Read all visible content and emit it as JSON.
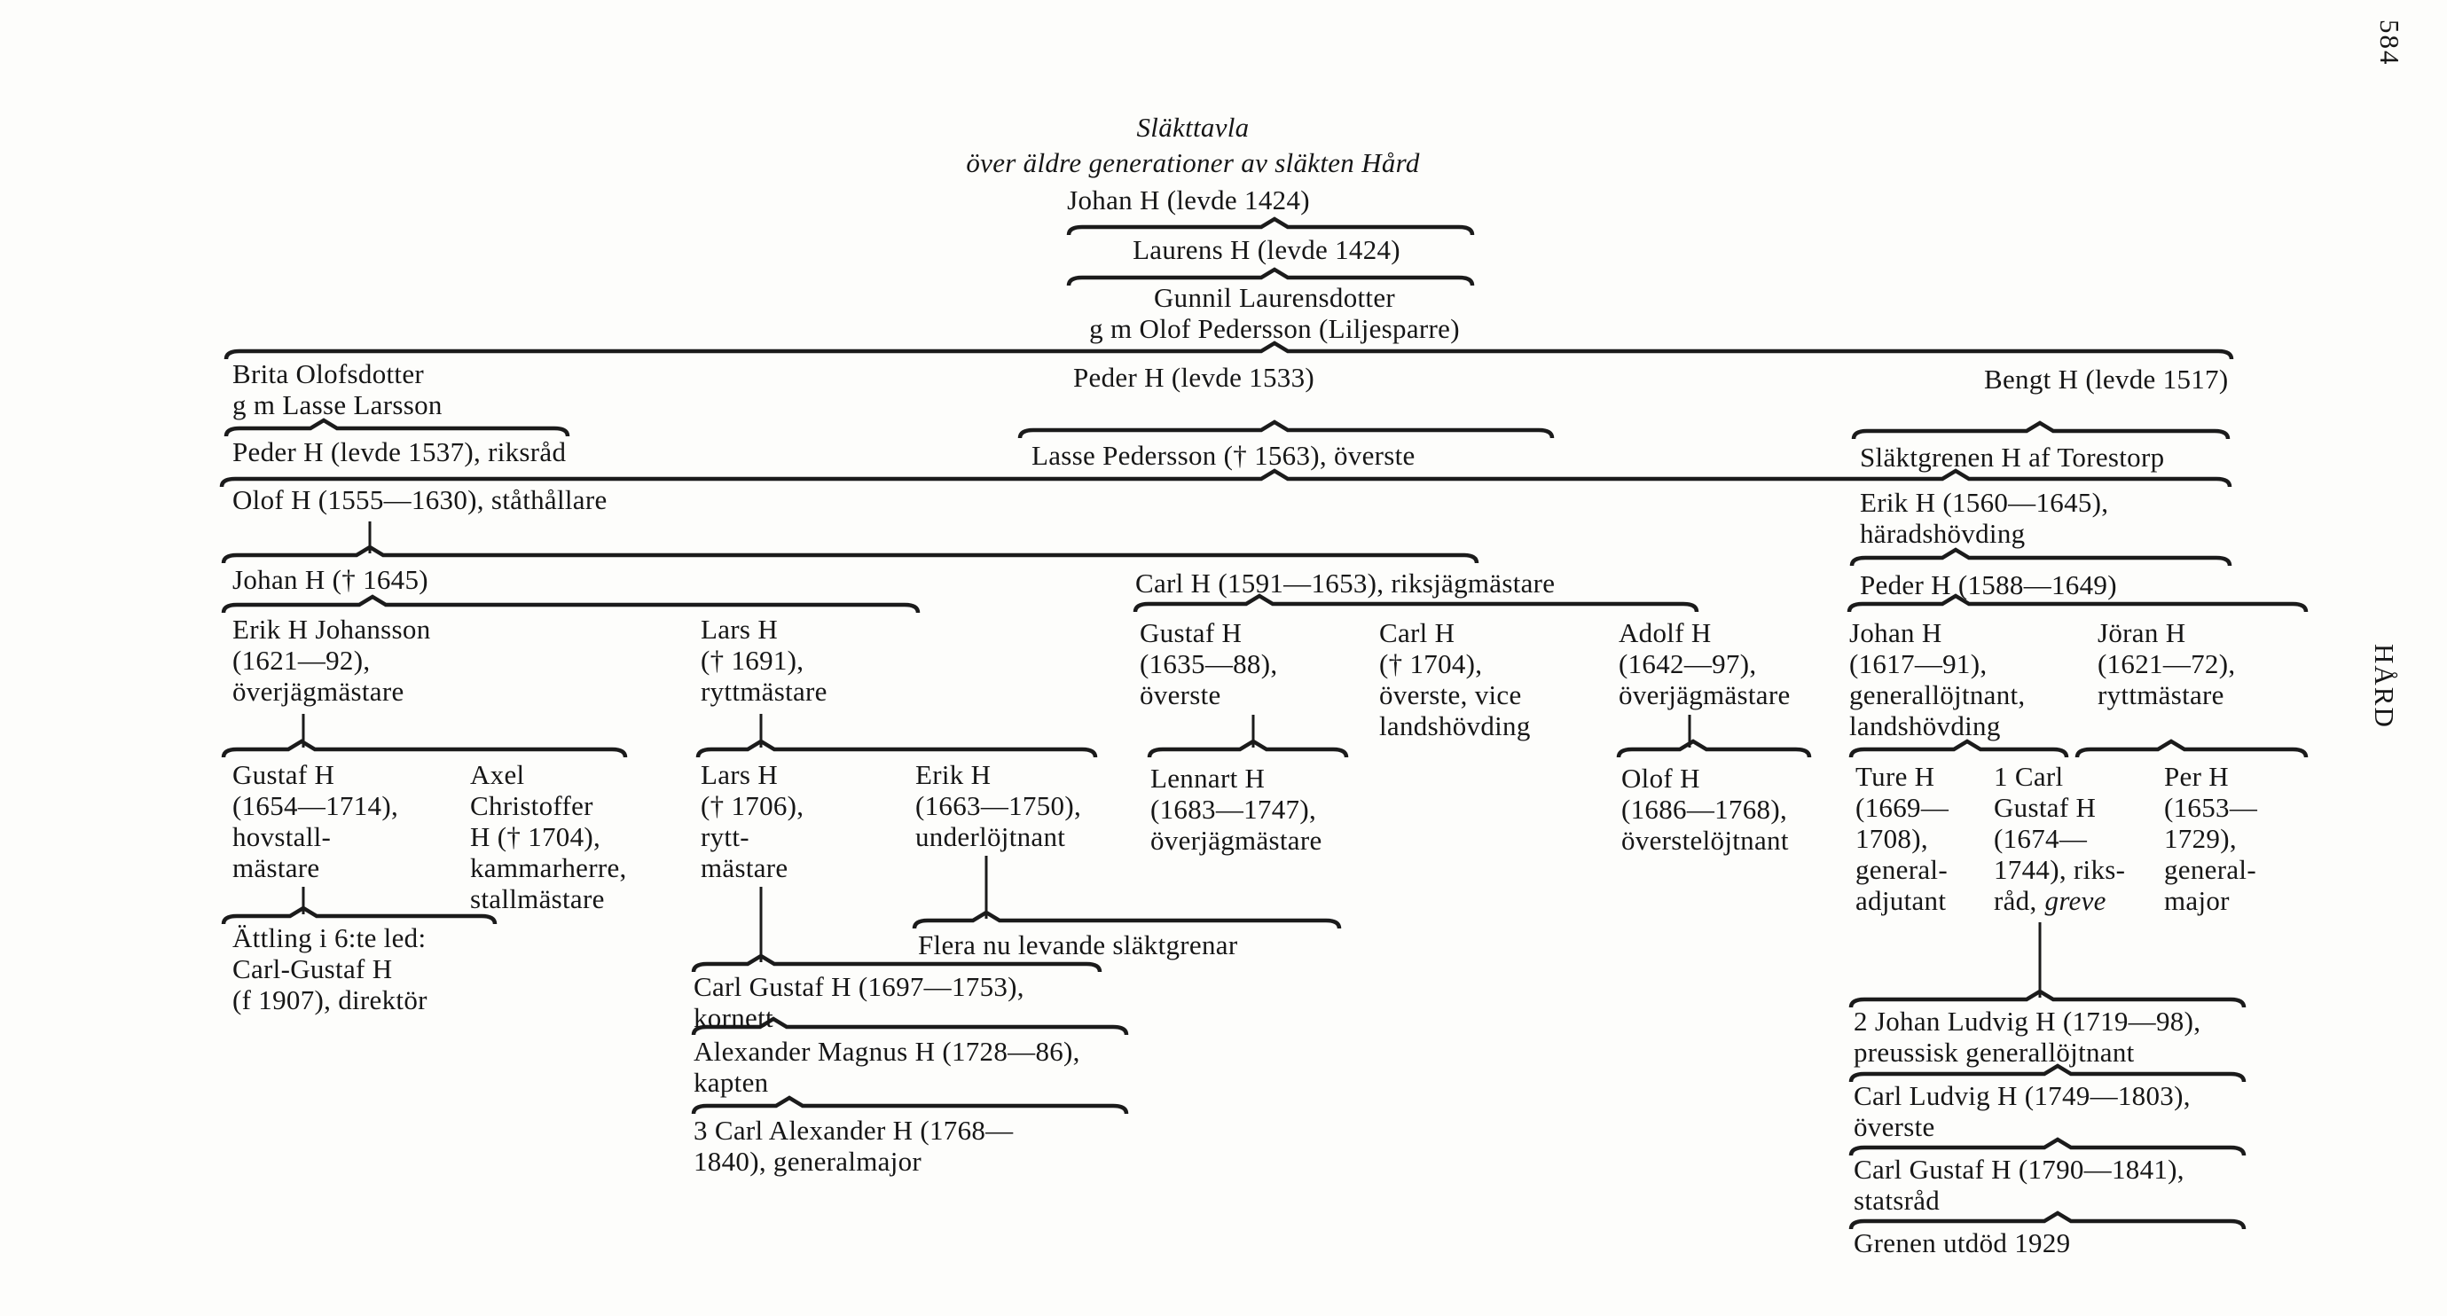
{
  "page": {
    "number": "584",
    "running_head": "HÅRD"
  },
  "title": {
    "main": "Släkttavla",
    "subtitle": "över äldre generationer av släkten Hård"
  },
  "labels": {
    "greve": "greve"
  },
  "persons": {
    "johan_1424": [
      "Johan H (levde 1424)"
    ],
    "laurens_1424": [
      "Laurens H (levde 1424)"
    ],
    "gunnil": [
      "Gunnil Laurensdotter",
      "g m Olof Pedersson (Liljesparre)"
    ],
    "brita": [
      "Brita Olofsdotter",
      "g m Lasse Larsson"
    ],
    "peder_1533": [
      "Peder H (levde 1533)"
    ],
    "bengt_1517": [
      "Bengt H (levde 1517)"
    ],
    "peder_1537": [
      "Peder H (levde 1537), riksråd"
    ],
    "lasse_pedersson": [
      "Lasse Pedersson († 1563), överste"
    ],
    "torestorp": [
      "Släktgrenen H af Torestorp"
    ],
    "olof_1555": [
      "Olof H (1555—1630), ståthållare"
    ],
    "erik_1560": [
      "Erik H (1560—1645),",
      "häradshövding"
    ],
    "johan_1645": [
      "Johan H († 1645)"
    ],
    "carl_1591": [
      "Carl H (1591—1653), riksjägmästare"
    ],
    "peder_1588": [
      "Peder H (1588—1649)"
    ],
    "erik_johansson": [
      "Erik H Johansson",
      "(1621—92),",
      "överjägmästare"
    ],
    "lars_1691": [
      "Lars H",
      "(† 1691),",
      "ryttmästare"
    ],
    "gustaf_1635": [
      "Gustaf H",
      "(1635—88),",
      "överste"
    ],
    "carl_1704": [
      "Carl H",
      "(† 1704),",
      "överste, vice",
      "landshövding"
    ],
    "adolf_1642": [
      "Adolf H",
      "(1642—97),",
      "överjägmästare"
    ],
    "johan_1617": [
      "Johan H",
      "(1617—91),",
      "generallöjtnant,",
      "landshövding"
    ],
    "joran_1621": [
      "Jöran H",
      "(1621—72),",
      "ryttmästare"
    ],
    "gustaf_1654": [
      "Gustaf H",
      "(1654—1714),",
      "hovstall-",
      "mästare"
    ],
    "axel_christoffer": [
      "Axel",
      "Christoffer",
      "H († 1704),",
      "kammarherre,",
      "stallmästare"
    ],
    "lars_1706": [
      "Lars H",
      "(† 1706),",
      "rytt-",
      "mästare"
    ],
    "erik_1663": [
      "Erik H",
      "(1663—1750),",
      "underlöjtnant"
    ],
    "lennart_1683": [
      "Lennart H",
      "(1683—1747),",
      "överjägmästare"
    ],
    "olof_1686": [
      "Olof H",
      "(1686—1768),",
      "överstelöjtnant"
    ],
    "ture_1669": [
      "Ture H",
      "(1669—",
      "1708),",
      "general-",
      "adjutant"
    ],
    "carl_gustaf_1674": [
      "1 Carl",
      "Gustaf H",
      "(1674—",
      "1744), riks-",
      "råd,"
    ],
    "per_1653": [
      "Per H",
      "(1653—",
      "1729),",
      "general-",
      "major"
    ],
    "attling": [
      "Ättling i 6:te led:",
      "Carl-Gustaf H",
      "(f 1907), direktör"
    ],
    "flera": [
      "Flera nu levande släktgrenar"
    ],
    "carl_gustaf_1697": [
      "Carl Gustaf H (1697—1753),",
      "kornett"
    ],
    "alexander_magnus": [
      "Alexander Magnus H (1728—86),",
      "kapten"
    ],
    "carl_alexander": [
      "3 Carl Alexander H (1768—",
      "1840), generalmajor"
    ],
    "johan_ludvig": [
      "2 Johan Ludvig H (1719—98),",
      "preussisk generallöjtnant"
    ],
    "carl_ludvig": [
      "Carl Ludvig H (1749—1803),",
      "överste"
    ],
    "carl_gustaf_1790": [
      "Carl Gustaf H (1790—1841),",
      "statsråd"
    ],
    "grenen": [
      "Grenen utdöd 1929"
    ]
  }
}
